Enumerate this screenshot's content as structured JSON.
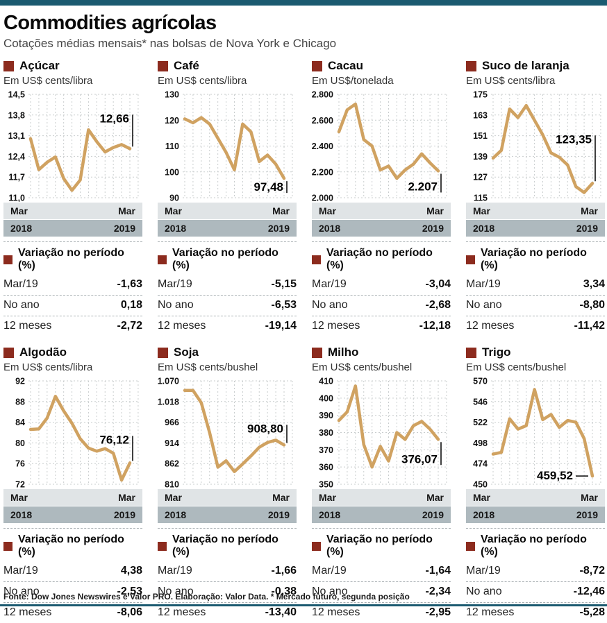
{
  "page": {
    "title": "Commodities agrícolas",
    "subtitle": "Cotações médias mensais* nas bolsas de Nova York e Chicago",
    "footer": "Fonte: Dow Jones Newswires e Valor PRO. Elaboração: Valor Data.  * Mercado futuro, segunda posição",
    "colors": {
      "accent_teal": "#1b5a70",
      "accent_red": "#8c2b1e",
      "line": "#d0a261",
      "band_light": "#e0e4e6",
      "band_dark": "#aeb9be",
      "grid": "#c9cdce"
    }
  },
  "axis": {
    "start_month": "Mar",
    "start_year": "2018",
    "end_month": "Mar",
    "end_year": "2019"
  },
  "variation": {
    "heading": "Variação no período (%)",
    "rows": [
      "Mar/19",
      "No ano",
      "12 meses"
    ]
  },
  "chart_data": [
    {
      "type": "line",
      "title": "Açúcar",
      "unit": "Em US$ cents/libra",
      "x_range": [
        "Mar 2018",
        "Mar 2019"
      ],
      "ylim": [
        11.0,
        14.5
      ],
      "yticks": [
        "14,5",
        "13,8",
        "13,1",
        "12,4",
        "11,7",
        "11,0"
      ],
      "values": [
        13.0,
        11.95,
        12.2,
        12.38,
        11.65,
        11.25,
        11.6,
        13.3,
        12.9,
        12.55,
        12.7,
        12.8,
        12.66
      ],
      "end_label": "12,66",
      "label_cfg": {
        "marker": "up",
        "dy": -38
      },
      "variation": [
        "-1,63",
        "0,18",
        "-2,72"
      ]
    },
    {
      "type": "line",
      "title": "Café",
      "unit": "Em US$ cents/libra",
      "x_range": [
        "Mar 2018",
        "Mar 2019"
      ],
      "ylim": [
        90,
        130
      ],
      "yticks": [
        "130",
        "120",
        "110",
        "100",
        "90"
      ],
      "values": [
        120.5,
        119.0,
        121.0,
        118.5,
        113.0,
        107.5,
        100.8,
        118.5,
        115.5,
        104.0,
        106.5,
        103.0,
        97.48
      ],
      "end_label": "97,48",
      "label_cfg": {
        "marker": "down",
        "dy": 18
      },
      "variation": [
        "-5,15",
        "-6,53",
        "-19,14"
      ]
    },
    {
      "type": "line",
      "title": "Cacau",
      "unit": "Em US$/tonelada",
      "x_range": [
        "Mar 2018",
        "Mar 2019"
      ],
      "ylim": [
        2000,
        2800
      ],
      "yticks": [
        "2.800",
        "2.600",
        "2.400",
        "2.200",
        "2.000"
      ],
      "values": [
        2510,
        2680,
        2725,
        2450,
        2400,
        2215,
        2245,
        2150,
        2215,
        2260,
        2340,
        2270,
        2207
      ],
      "end_label": "2.207",
      "label_cfg": {
        "marker": "down",
        "dy": 28
      },
      "variation": [
        "-3,04",
        "-2,68",
        "-12,18"
      ]
    },
    {
      "type": "line",
      "title": "Suco de laranja",
      "unit": "Em US$ cents/libra",
      "x_range": [
        "Mar 2018",
        "Mar 2019"
      ],
      "ylim": [
        115,
        175
      ],
      "yticks": [
        "175",
        "163",
        "151",
        "139",
        "127",
        "115"
      ],
      "values": [
        138,
        142.5,
        166.5,
        161.5,
        168.5,
        160,
        151.5,
        141,
        138.5,
        134,
        121.5,
        118,
        123.35
      ],
      "end_label": "123,35",
      "label_cfg": {
        "marker": "up",
        "dy": -58
      },
      "variation": [
        "3,34",
        "-8,80",
        "-11,42"
      ]
    },
    {
      "type": "line",
      "title": "Algodão",
      "unit": "Em US$ cents/libra",
      "x_range": [
        "Mar 2018",
        "Mar 2019"
      ],
      "ylim": [
        72,
        92
      ],
      "yticks": [
        "92",
        "88",
        "84",
        "80",
        "76",
        "72"
      ],
      "values": [
        82.6,
        82.7,
        84.8,
        89.0,
        86.2,
        83.8,
        80.8,
        79.0,
        78.4,
        78.9,
        78.0,
        72.8,
        76.12
      ],
      "end_label": "76,12",
      "label_cfg": {
        "marker": "up",
        "dy": -28
      },
      "variation": [
        "4,38",
        "-2,53",
        "-8,06"
      ]
    },
    {
      "type": "line",
      "title": "Soja",
      "unit": "Em US$ cents/bushel",
      "x_range": [
        "Mar 2018",
        "Mar 2019"
      ],
      "ylim": [
        810,
        1070
      ],
      "yticks": [
        "1.070",
        "1.018",
        "966",
        "914",
        "862",
        "810"
      ],
      "values": [
        1046,
        1046,
        1015,
        940,
        853,
        869,
        842,
        861,
        881,
        903,
        915,
        921,
        908.8
      ],
      "end_label": "908,80",
      "label_cfg": {
        "marker": "up",
        "dy": -18
      },
      "variation": [
        "-1,66",
        "-0,38",
        "-13,40"
      ]
    },
    {
      "type": "line",
      "title": "Milho",
      "unit": "Em US$ cents/bushel",
      "x_range": [
        "Mar 2018",
        "Mar 2019"
      ],
      "ylim": [
        350,
        410
      ],
      "yticks": [
        "410",
        "400",
        "390",
        "380",
        "370",
        "360",
        "350"
      ],
      "values": [
        387,
        392,
        407,
        373,
        360,
        372,
        363.5,
        380,
        376,
        384,
        386.5,
        382,
        376.07
      ],
      "end_label": "376,07",
      "label_cfg": {
        "marker": "down",
        "dy": 34
      },
      "variation": [
        "-1,64",
        "-2,34",
        "-2,95"
      ]
    },
    {
      "type": "line",
      "title": "Trigo",
      "unit": "Em US$ cents/bushel",
      "x_range": [
        "Mar 2018",
        "Mar 2019"
      ],
      "ylim": [
        450,
        570
      ],
      "yticks": [
        "570",
        "546",
        "522",
        "498",
        "474",
        "450"
      ],
      "values": [
        485,
        487,
        526,
        514,
        518,
        560,
        525,
        531,
        516,
        524,
        522,
        503,
        459.52
      ],
      "end_label": "459,52",
      "label_cfg": {
        "marker": "left",
        "dy": 5
      },
      "variation": [
        "-8,72",
        "-12,46",
        "-5,28"
      ]
    }
  ]
}
